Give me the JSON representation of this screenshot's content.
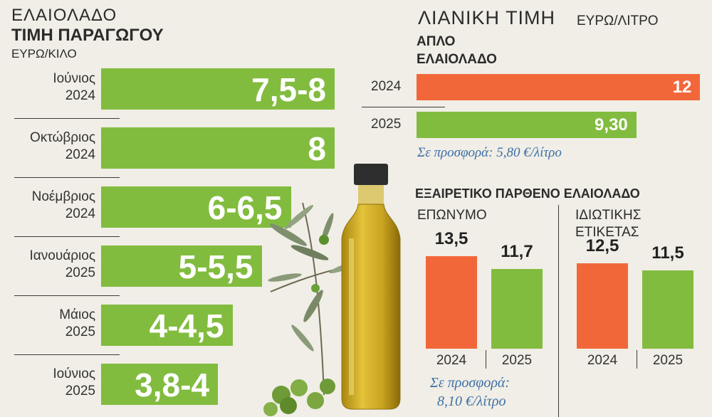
{
  "colors": {
    "green": "#82bc3f",
    "orange": "#f26739",
    "background": "#f0eee6",
    "offer_text": "#3e6fa7"
  },
  "left": {
    "title_line1": "ΕΛΑΙΟΛΑΔΟ",
    "title_line2": "ΤΙΜΗ ΠΑΡΑΓΩΓΟΥ",
    "unit": "ΕΥΡΩ/ΚΙΛΟ"
  },
  "right": {
    "title": "ΛΙΑΝΙΚΗ ΤΙΜΗ",
    "unit": "ΕΥΡΩ/ΛΙΤΡΟ",
    "simple_title_line1": "ΑΠΛΟ",
    "simple_title_line2": "ΕΛΑΙΟΛΑΔΟ",
    "simple_offer": "Σε προσφορά: 5,80 €/λίτρο",
    "extra_title": "ΕΞΑΙΡΕΤΙΚΟ ΠΑΡΘΕΝΟ ΕΛΑΙΟΛΑΔΟ",
    "branded_label": "ΕΠΩΝΥΜΟ",
    "private_label_line1": "ΙΔΙΩΤΙΚΗΣ",
    "private_label_line2": "ΕΤΙΚΕΤΑΣ",
    "branded_offer_line1": "Σε προσφορά:",
    "branded_offer_line2": "8,10 €/λίτρο"
  },
  "chart_data": [
    {
      "type": "bar",
      "orientation": "horizontal",
      "title": "ΕΛΑΙΟΛΑΔΟ ΤΙΜΗ ΠΑΡΑΓΩΓΟΥ",
      "unit": "ΕΥΡΩ/ΚΙΛΟ",
      "categories": [
        {
          "month": "Ιούνιος",
          "year": "2024"
        },
        {
          "month": "Οκτώβριος",
          "year": "2024"
        },
        {
          "month": "Νοέμβριος",
          "year": "2024"
        },
        {
          "month": "Ιανουάριος",
          "year": "2025"
        },
        {
          "month": "Μάιος",
          "year": "2025"
        },
        {
          "month": "Ιούνιος",
          "year": "2025"
        }
      ],
      "labels": [
        "7,5-8",
        "8",
        "6-6,5",
        "5-5,5",
        "4-4,5",
        "3,8-4"
      ],
      "values": [
        8,
        8,
        6.5,
        5.5,
        4.5,
        4
      ]
    },
    {
      "type": "bar",
      "orientation": "horizontal",
      "title": "ΑΠΛΟ ΕΛΑΙΟΛΑΔΟ",
      "unit": "ΕΥΡΩ/ΛΙΤΡΟ",
      "categories": [
        "2024",
        "2025"
      ],
      "labels": [
        "12",
        "9,30"
      ],
      "values": [
        12,
        9.3
      ]
    },
    {
      "type": "bar",
      "title": "ΕΞΑΙΡΕΤΙΚΟ ΠΑΡΘΕΝΟ ΕΛΑΙΟΛΑΔΟ",
      "groups": [
        {
          "name": "ΕΠΩΝΥΜΟ",
          "categories": [
            "2024",
            "2025"
          ],
          "labels": [
            "13,5",
            "11,7"
          ],
          "values": [
            13.5,
            11.7
          ]
        },
        {
          "name": "ΙΔΙΩΤΙΚΗΣ ΕΤΙΚΕΤΑΣ",
          "categories": [
            "2024",
            "2025"
          ],
          "labels": [
            "12,5",
            "11,5"
          ],
          "values": [
            12.5,
            11.5
          ]
        }
      ]
    }
  ]
}
